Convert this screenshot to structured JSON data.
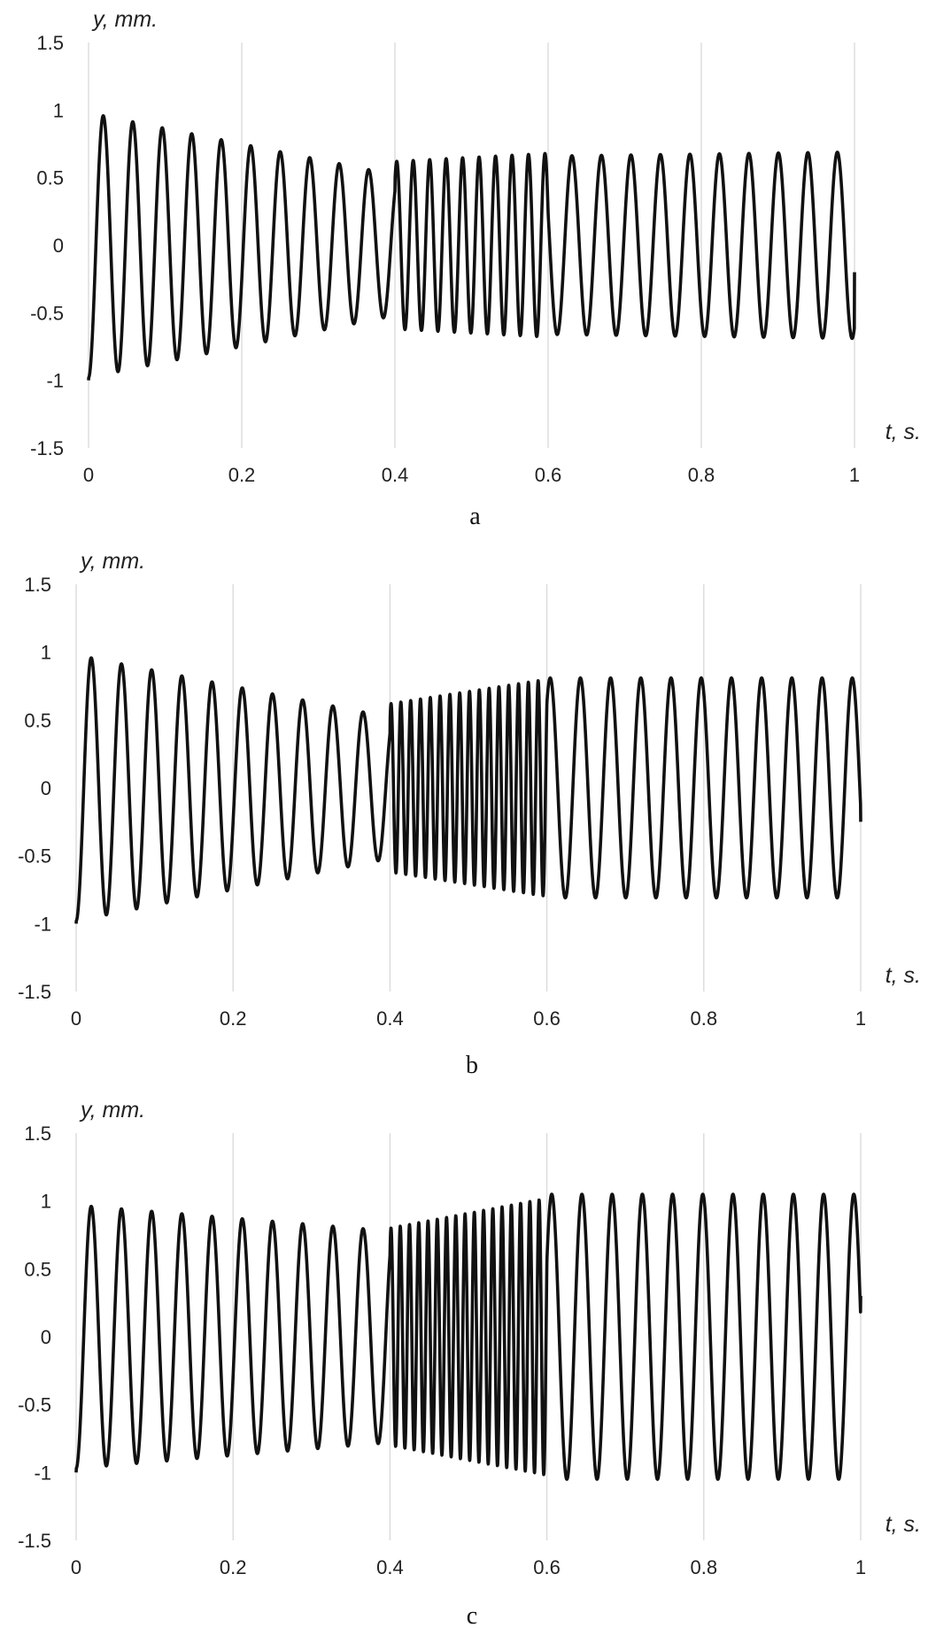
{
  "chart_data": [
    {
      "type": "line",
      "caption": "a",
      "xlabel": "t, s.",
      "ylabel": "y, mm.",
      "xlim": [
        0,
        1
      ],
      "ylim": [
        -1.5,
        1.5
      ],
      "x_ticks": [
        "0",
        "0.2",
        "0.4",
        "0.6",
        "0.8",
        "1"
      ],
      "y_ticks": [
        "1.5",
        "1",
        "0.5",
        "0",
        "-0.5",
        "-1",
        "-1.5"
      ],
      "grid": "vertical",
      "legend": "none",
      "series_color": "#111111",
      "signal": {
        "start_value": -1,
        "end_value": -0.2,
        "segments": [
          {
            "t_start": 0.0,
            "t_end": 0.4,
            "period": 0.0385,
            "amp_start": 0.98,
            "amp_end": 0.52
          },
          {
            "t_start": 0.4,
            "t_end": 0.6,
            "period": 0.0215,
            "amp_start": 0.62,
            "amp_end": 0.68
          },
          {
            "t_start": 0.6,
            "t_end": 1.0,
            "period": 0.0385,
            "amp_start": 0.66,
            "amp_end": 0.69
          }
        ]
      }
    },
    {
      "type": "line",
      "caption": "b",
      "xlabel": "t, s.",
      "ylabel": "y, mm.",
      "xlim": [
        0,
        1
      ],
      "ylim": [
        -1.5,
        1.5
      ],
      "x_ticks": [
        "0",
        "0.2",
        "0.4",
        "0.6",
        "0.8",
        "1"
      ],
      "y_ticks": [
        "1.5",
        "1",
        "0.5",
        "0",
        "-0.5",
        "-1",
        "-1.5"
      ],
      "grid": "vertical",
      "legend": "none",
      "series_color": "#111111",
      "signal": {
        "start_value": -1,
        "end_value": -0.25,
        "segments": [
          {
            "t_start": 0.0,
            "t_end": 0.4,
            "period": 0.0385,
            "amp_start": 0.98,
            "amp_end": 0.52
          },
          {
            "t_start": 0.4,
            "t_end": 0.6,
            "period": 0.0125,
            "amp_start": 0.62,
            "amp_end": 0.8
          },
          {
            "t_start": 0.6,
            "t_end": 1.0,
            "period": 0.0385,
            "amp_start": 0.81,
            "amp_end": 0.81
          }
        ]
      }
    },
    {
      "type": "line",
      "caption": "c",
      "xlabel": "t, s.",
      "ylabel": "y, mm.",
      "xlim": [
        0,
        1
      ],
      "ylim": [
        -1.5,
        1.5
      ],
      "x_ticks": [
        "0",
        "0.2",
        "0.4",
        "0.6",
        "0.8",
        "1"
      ],
      "y_ticks": [
        "1.5",
        "1",
        "0.5",
        "0",
        "-0.5",
        "-1",
        "-1.5"
      ],
      "grid": "vertical",
      "legend": "none",
      "series_color": "#111111",
      "signal": {
        "start_value": -1,
        "end_value": 0.3,
        "segments": [
          {
            "t_start": 0.0,
            "t_end": 0.4,
            "period": 0.0385,
            "amp_start": 0.97,
            "amp_end": 0.78
          },
          {
            "t_start": 0.4,
            "t_end": 0.6,
            "period": 0.0118,
            "amp_start": 0.8,
            "amp_end": 1.02
          },
          {
            "t_start": 0.6,
            "t_end": 1.0,
            "period": 0.0385,
            "amp_start": 1.05,
            "amp_end": 1.05
          }
        ]
      }
    }
  ]
}
